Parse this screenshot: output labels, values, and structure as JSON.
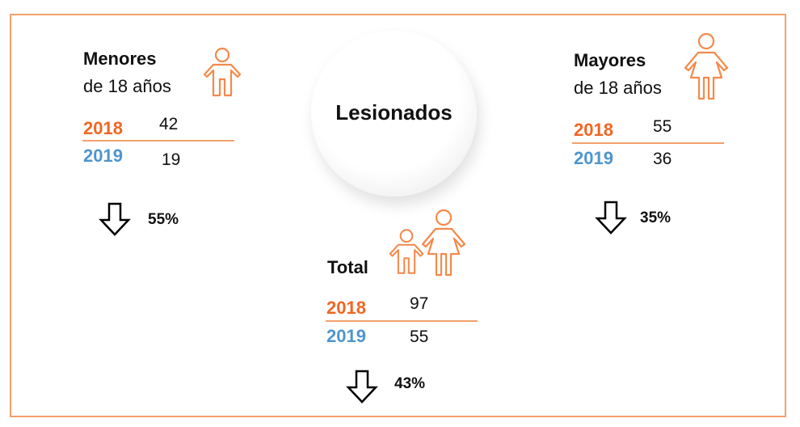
{
  "title": "Lesionados",
  "colors": {
    "accent": "#f26522",
    "year_2019": "#4e95cf",
    "border": "#f4a06b"
  },
  "menores": {
    "heading": "Menores",
    "subheading": "de 18 años",
    "icon": "child-icon",
    "rows": [
      {
        "year": "2018",
        "value": "42"
      },
      {
        "year": "2019",
        "value": "19"
      }
    ],
    "change_icon": "arrow-down-icon",
    "change": "55%"
  },
  "mayores": {
    "heading": "Mayores",
    "subheading": "de 18 años",
    "icon": "woman-icon",
    "rows": [
      {
        "year": "2018",
        "value": "55"
      },
      {
        "year": "2019",
        "value": "36"
      }
    ],
    "change_icon": "arrow-down-icon",
    "change": "35%"
  },
  "total": {
    "heading": "Total",
    "icon": "family-icon",
    "rows": [
      {
        "year": "2018",
        "value": "97"
      },
      {
        "year": "2019",
        "value": "55"
      }
    ],
    "change_icon": "arrow-down-icon",
    "change": "43%"
  }
}
